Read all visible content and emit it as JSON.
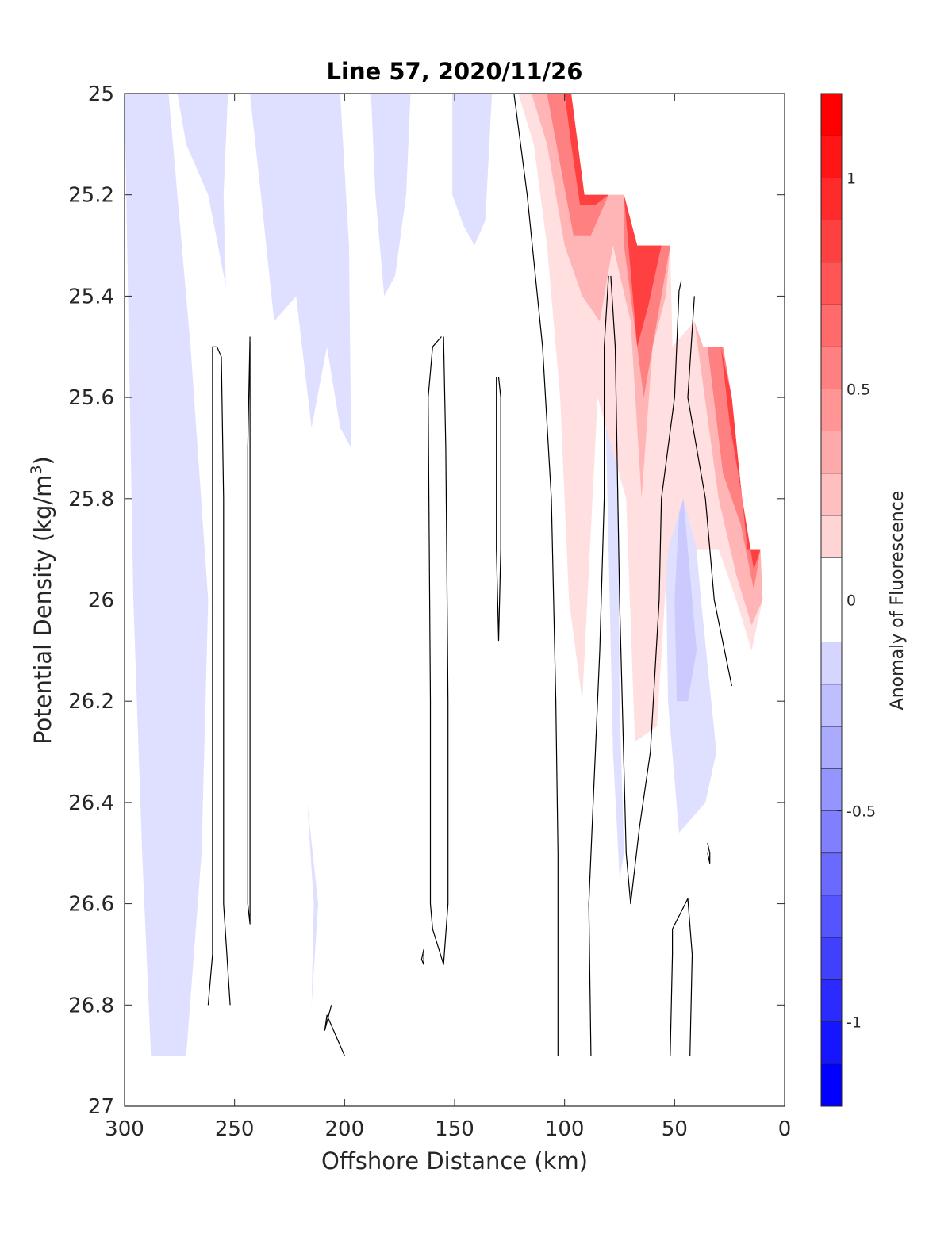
{
  "chart_data": {
    "type": "contour",
    "title": "Line 57, 2020/11/26",
    "xlabel": "Offshore Distance (km)",
    "ylabel": "Potential Density (kg/m",
    "ylabel_sup": "3",
    "ylabel_close": ")",
    "xlim": [
      300,
      0
    ],
    "ylim": [
      25,
      27
    ],
    "y_reversed": true,
    "x_reversed": true,
    "xticks": [
      300,
      250,
      200,
      150,
      100,
      50,
      0
    ],
    "xtick_labels": [
      "300",
      "250",
      "200",
      "150",
      "100",
      "50",
      "0"
    ],
    "yticks": [
      25,
      25.2,
      25.4,
      25.6,
      25.8,
      26,
      26.2,
      26.4,
      26.6,
      26.8,
      27
    ],
    "ytick_labels": [
      "25",
      "25.2",
      "25.4",
      "25.6",
      "25.8",
      "26",
      "26.2",
      "26.4",
      "26.6",
      "26.8",
      "27"
    ],
    "grid": false,
    "colorbar": {
      "label": "Anomaly of Fluorescence",
      "range": [
        -1.2,
        1.2
      ],
      "levels": 24,
      "ticks": [
        -1,
        -0.5,
        0,
        0.5,
        1
      ],
      "tick_labels": [
        "-1",
        "-0.5",
        "0",
        "0.5",
        "1"
      ],
      "colors": {
        "neg_max": "#0000ff",
        "zero": "#ffffff",
        "pos_max": "#ff0000"
      }
    },
    "filled_regions": [
      {
        "anomaly": -0.15,
        "points": [
          [
            300,
            25
          ],
          [
            280,
            25
          ],
          [
            270,
            25.5
          ],
          [
            262,
            26.0
          ],
          [
            265,
            26.5
          ],
          [
            272,
            26.9
          ],
          [
            288,
            26.9
          ],
          [
            292,
            26.5
          ],
          [
            296,
            26.0
          ],
          [
            298,
            25.5
          ]
        ]
      },
      {
        "anomaly": -0.15,
        "points": [
          [
            276,
            25
          ],
          [
            253,
            25
          ],
          [
            255,
            25.2
          ],
          [
            254,
            25.38
          ],
          [
            262,
            25.2
          ],
          [
            272,
            25.1
          ]
        ]
      },
      {
        "anomaly": -0.15,
        "points": [
          [
            243,
            25
          ],
          [
            202,
            25
          ],
          [
            198,
            25.3
          ],
          [
            197,
            25.7
          ],
          [
            202,
            25.66
          ],
          [
            208,
            25.5
          ],
          [
            215,
            25.66
          ],
          [
            222,
            25.4
          ],
          [
            232,
            25.45
          ],
          [
            238,
            25.2
          ]
        ]
      },
      {
        "anomaly": -0.15,
        "points": [
          [
            188,
            25
          ],
          [
            170,
            25
          ],
          [
            172,
            25.2
          ],
          [
            177,
            25.36
          ],
          [
            182,
            25.4
          ],
          [
            186,
            25.2
          ]
        ]
      },
      {
        "anomaly": -0.15,
        "points": [
          [
            151,
            25
          ],
          [
            133,
            25
          ],
          [
            136,
            25.25
          ],
          [
            141,
            25.3
          ],
          [
            146,
            25.26
          ],
          [
            151,
            25.2
          ]
        ]
      },
      {
        "anomaly": -0.15,
        "points": [
          [
            217,
            26.4
          ],
          [
            214,
            26.6
          ],
          [
            215,
            26.8
          ],
          [
            212,
            26.6
          ]
        ]
      },
      {
        "anomaly": -0.15,
        "points": [
          [
            82,
            25.5
          ],
          [
            76,
            25.6
          ],
          [
            75,
            26.2
          ],
          [
            73,
            26.5
          ],
          [
            75,
            26.55
          ],
          [
            78,
            26.3
          ],
          [
            80,
            25.9
          ]
        ]
      },
      {
        "anomaly": -0.15,
        "points": [
          [
            52,
            25.7
          ],
          [
            42,
            25.8
          ],
          [
            38,
            26.0
          ],
          [
            31,
            26.3
          ],
          [
            36,
            26.4
          ],
          [
            48,
            26.46
          ],
          [
            53,
            26.2
          ],
          [
            54,
            25.9
          ]
        ]
      },
      {
        "anomaly": -0.25,
        "points": [
          [
            47,
            25.75
          ],
          [
            44,
            25.9
          ],
          [
            40,
            26.1
          ],
          [
            44,
            26.2
          ],
          [
            49,
            26.2
          ],
          [
            50,
            26.0
          ]
        ]
      },
      {
        "anomaly": 0.15,
        "points": [
          [
            121,
            25
          ],
          [
            97,
            25
          ],
          [
            91,
            25.2
          ],
          [
            73,
            25.2
          ],
          [
            67,
            25.3
          ],
          [
            52,
            25.3
          ],
          [
            51,
            25.5
          ],
          [
            41,
            25.45
          ],
          [
            37,
            25.5
          ],
          [
            28,
            25.5
          ],
          [
            24,
            25.6
          ],
          [
            17,
            25.9
          ],
          [
            11,
            25.9
          ],
          [
            10,
            26.0
          ],
          [
            15,
            26.1
          ],
          [
            22,
            26.0
          ],
          [
            30,
            25.9
          ],
          [
            40,
            25.9
          ],
          [
            46,
            25.8
          ],
          [
            53,
            25.9
          ],
          [
            58,
            26.25
          ],
          [
            68,
            26.28
          ],
          [
            72,
            25.8
          ],
          [
            85,
            25.6
          ],
          [
            92,
            26.2
          ],
          [
            98,
            26.0
          ],
          [
            102,
            25.6
          ],
          [
            108,
            25.3
          ],
          [
            114,
            25.1
          ]
        ]
      },
      {
        "anomaly": 0.35,
        "points": [
          [
            115,
            25
          ],
          [
            97,
            25
          ],
          [
            91,
            25.2
          ],
          [
            80,
            25.2
          ],
          [
            73,
            25.2
          ],
          [
            67,
            25.3
          ],
          [
            52,
            25.3
          ],
          [
            54,
            25.4
          ],
          [
            60,
            25.5
          ],
          [
            65,
            25.8
          ],
          [
            70,
            25.45
          ],
          [
            78,
            25.3
          ],
          [
            84,
            25.45
          ],
          [
            92,
            25.4
          ],
          [
            100,
            25.3
          ],
          [
            108,
            25.1
          ]
        ]
      },
      {
        "anomaly": 0.35,
        "points": [
          [
            41,
            25.45
          ],
          [
            37,
            25.5
          ],
          [
            28,
            25.5
          ],
          [
            24,
            25.6
          ],
          [
            17,
            25.9
          ],
          [
            11,
            25.9
          ],
          [
            10,
            26.0
          ],
          [
            15,
            26.05
          ],
          [
            22,
            25.95
          ],
          [
            30,
            25.8
          ]
        ]
      },
      {
        "anomaly": 0.6,
        "points": [
          [
            108,
            25
          ],
          [
            97,
            25
          ],
          [
            91,
            25.2
          ],
          [
            80,
            25.2
          ],
          [
            88,
            25.28
          ],
          [
            96,
            25.28
          ],
          [
            102,
            25.14
          ]
        ]
      },
      {
        "anomaly": 0.6,
        "points": [
          [
            73,
            25.2
          ],
          [
            67,
            25.3
          ],
          [
            52,
            25.3
          ],
          [
            58,
            25.45
          ],
          [
            64,
            25.6
          ],
          [
            70,
            25.4
          ],
          [
            73,
            25.3
          ]
        ]
      },
      {
        "anomaly": 0.6,
        "points": [
          [
            35,
            25.5
          ],
          [
            28,
            25.5
          ],
          [
            24,
            25.6
          ],
          [
            17,
            25.9
          ],
          [
            11,
            25.9
          ],
          [
            14,
            25.98
          ],
          [
            20,
            25.85
          ],
          [
            28,
            25.75
          ]
        ]
      },
      {
        "anomaly": 0.9,
        "points": [
          [
            100,
            25
          ],
          [
            97,
            25
          ],
          [
            91,
            25.2
          ],
          [
            80,
            25.2
          ],
          [
            86,
            25.22
          ],
          [
            93,
            25.22
          ],
          [
            97,
            25.1
          ]
        ]
      },
      {
        "anomaly": 0.9,
        "points": [
          [
            73,
            25.2
          ],
          [
            67,
            25.3
          ],
          [
            56,
            25.3
          ],
          [
            62,
            25.42
          ],
          [
            67,
            25.5
          ],
          [
            70,
            25.35
          ]
        ]
      },
      {
        "anomaly": 0.9,
        "points": [
          [
            29,
            25.5
          ],
          [
            24,
            25.6
          ],
          [
            17,
            25.9
          ],
          [
            11,
            25.9
          ],
          [
            14,
            25.94
          ],
          [
            20,
            25.78
          ],
          [
            25,
            25.65
          ]
        ]
      }
    ],
    "contour_lines": [
      {
        "points": [
          [
            262,
            26.8
          ],
          [
            260,
            26.7
          ],
          [
            260,
            26.0
          ],
          [
            260,
            25.5
          ],
          [
            258,
            25.5
          ],
          [
            256,
            25.52
          ],
          [
            255,
            25.8
          ],
          [
            255,
            26.3
          ],
          [
            255,
            26.6
          ],
          [
            252,
            26.8
          ]
        ]
      },
      {
        "points": [
          [
            243,
            25.48
          ],
          [
            244,
            25.7
          ],
          [
            244,
            26.3
          ],
          [
            244,
            26.6
          ],
          [
            243,
            26.64
          ],
          [
            243,
            26.6
          ],
          [
            243,
            26.2
          ],
          [
            243,
            25.7
          ],
          [
            243,
            25.49
          ]
        ]
      },
      {
        "points": [
          [
            164,
            26.7
          ],
          [
            164,
            26.72
          ],
          [
            165,
            26.71
          ],
          [
            164,
            26.69
          ]
        ]
      },
      {
        "points": [
          [
            155,
            25.48
          ],
          [
            154,
            25.7
          ],
          [
            153,
            26.2
          ],
          [
            153,
            26.6
          ],
          [
            155,
            26.72
          ],
          [
            160,
            26.65
          ],
          [
            161,
            26.6
          ],
          [
            161,
            26.2
          ],
          [
            162,
            25.6
          ],
          [
            160,
            25.5
          ],
          [
            156,
            25.48
          ]
        ]
      },
      {
        "points": [
          [
            130,
            25.56
          ],
          [
            129,
            25.6
          ],
          [
            129,
            25.9
          ],
          [
            130,
            26.08
          ],
          [
            131,
            25.9
          ],
          [
            131,
            25.56
          ]
        ]
      },
      {
        "points": [
          [
            206,
            26.8
          ],
          [
            209,
            26.85
          ],
          [
            208,
            26.82
          ],
          [
            200,
            26.9
          ]
        ]
      },
      {
        "points": [
          [
            123,
            25
          ],
          [
            117,
            25.2
          ],
          [
            110,
            25.5
          ],
          [
            106,
            25.8
          ],
          [
            104,
            26.2
          ],
          [
            103,
            26.5
          ],
          [
            103,
            26.9
          ]
        ]
      },
      {
        "points": [
          [
            80,
            25.36
          ],
          [
            82,
            25.5
          ],
          [
            82,
            25.8
          ],
          [
            84,
            26.1
          ],
          [
            86,
            26.3
          ],
          [
            87,
            26.4
          ],
          [
            89,
            26.6
          ],
          [
            88,
            26.9
          ]
        ]
      },
      {
        "points": [
          [
            79,
            25.36
          ],
          [
            77,
            25.5
          ],
          [
            75,
            26.0
          ],
          [
            72,
            26.5
          ],
          [
            70,
            26.6
          ],
          [
            66,
            26.45
          ],
          [
            61,
            26.3
          ],
          [
            57,
            26.0
          ],
          [
            56,
            25.8
          ],
          [
            50,
            25.6
          ],
          [
            48,
            25.39
          ],
          [
            47,
            25.37
          ]
        ]
      },
      {
        "points": [
          [
            41,
            25.4
          ],
          [
            44,
            25.6
          ],
          [
            36,
            25.8
          ],
          [
            32,
            26.0
          ],
          [
            24,
            26.17
          ]
        ]
      },
      {
        "points": [
          [
            35,
            26.48
          ],
          [
            34,
            26.5
          ],
          [
            34,
            26.52
          ],
          [
            35,
            26.5
          ]
        ]
      },
      {
        "points": [
          [
            52,
            26.9
          ],
          [
            51,
            26.7
          ],
          [
            51,
            26.65
          ],
          [
            44,
            26.59
          ],
          [
            42,
            26.7
          ],
          [
            43,
            26.9
          ]
        ]
      }
    ]
  }
}
